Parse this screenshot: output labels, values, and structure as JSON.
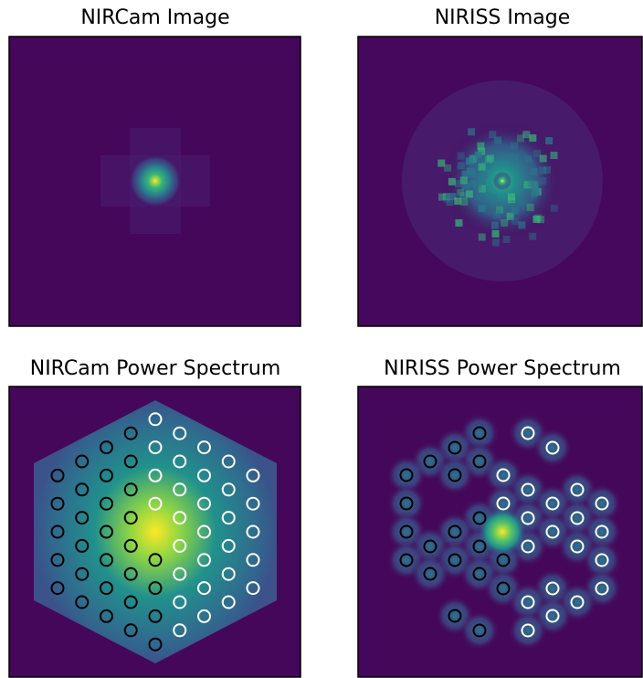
{
  "panels": [
    {
      "title": "NIRCam Image"
    },
    {
      "title": "NIRISS Image"
    },
    {
      "title": "NIRCam Power Spectrum"
    },
    {
      "title": "NIRISS Power Spectrum"
    }
  ]
}
